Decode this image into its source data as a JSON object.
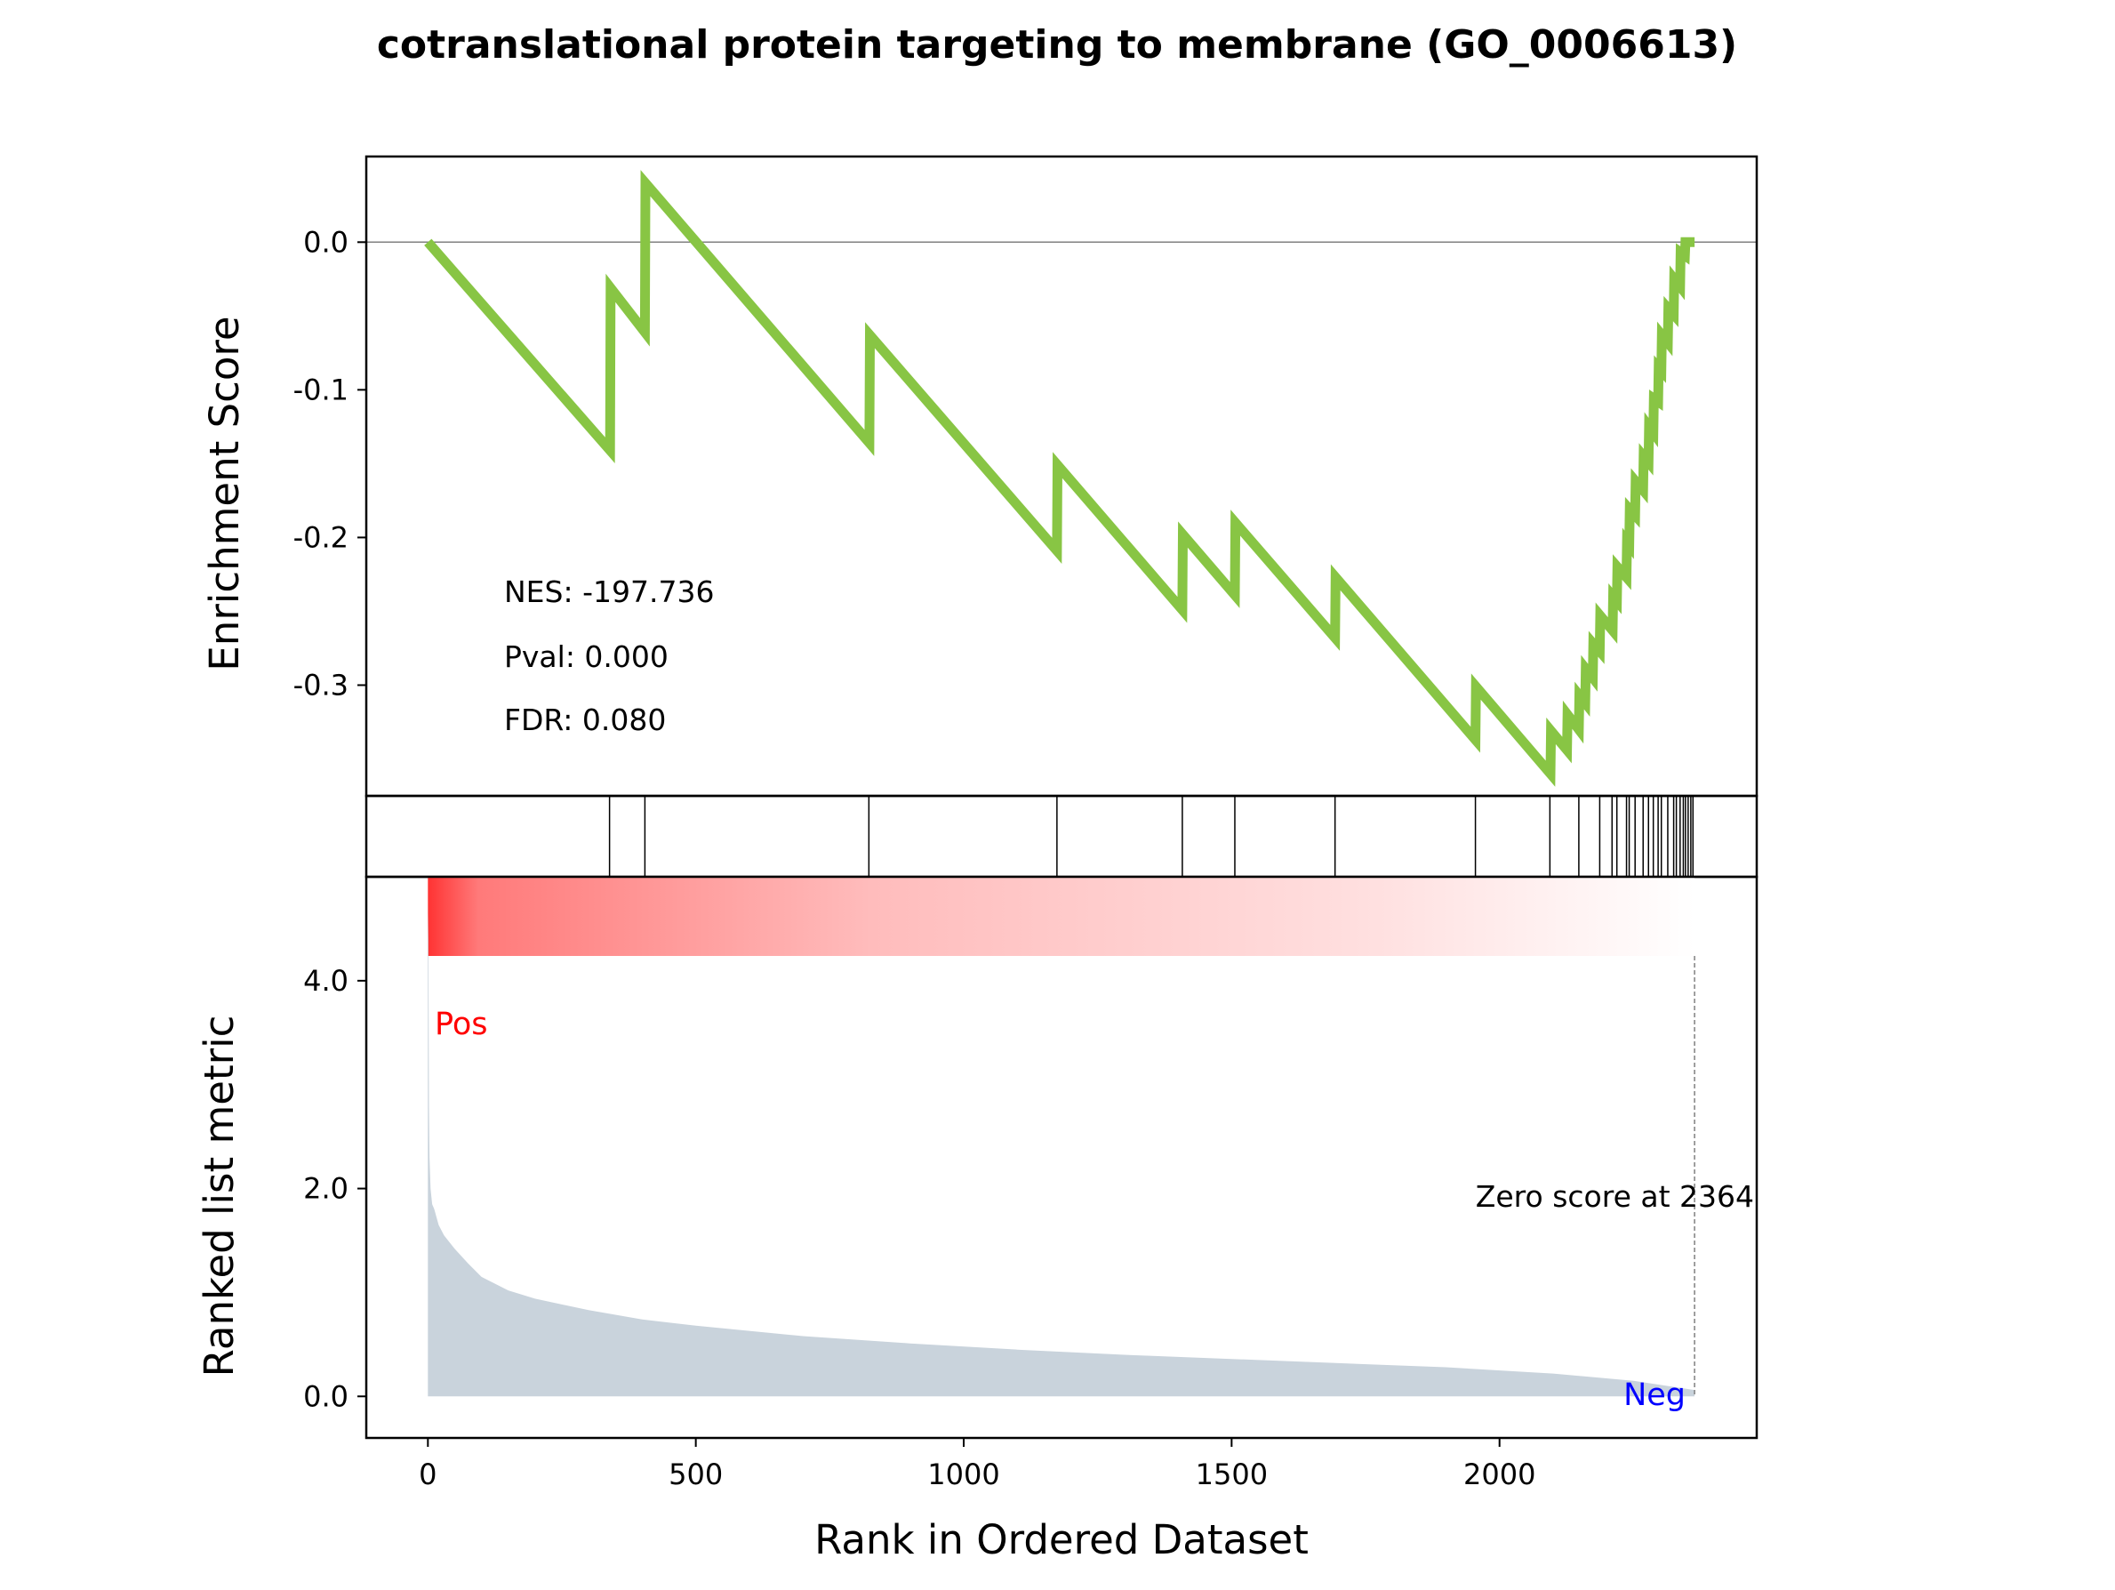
{
  "colors": {
    "enrichment_line": "#88c544",
    "hit_line": "#000000",
    "metric_fill": "#c9d3dc",
    "gradient_start": "#ff3333",
    "gradient_end": "#ffffff",
    "pos_label": "#ff0000",
    "neg_label": "#0000ff",
    "zero_line": "#808080",
    "zero_score_line": "#808080"
  },
  "chart_data": [
    {
      "type": "line",
      "panel": "enrichment",
      "title": "cotranslational protein targeting to membrane (GO_0006613)",
      "ylabel": "Enrichment Score",
      "xlabel": "",
      "xlim": [
        -115,
        2480
      ],
      "ylim": [
        -0.375,
        0.058
      ],
      "yticks": [
        0.0,
        -0.1,
        -0.2,
        -0.3
      ],
      "ytick_labels": [
        "0.0",
        "-0.1",
        "-0.2",
        "-0.3"
      ],
      "zero_line": true,
      "annotations": {
        "nes": "NES: -197.736",
        "pval": "Pval: 0.000",
        "fdr": "FDR: 0.080"
      },
      "series": [
        {
          "x": [
            0,
            340,
            341,
            405,
            406,
            824,
            825,
            1174,
            1175,
            1408,
            1409,
            1506,
            1507,
            1693,
            1694,
            1955,
            1956,
            2095,
            2096,
            2126,
            2127,
            2148,
            2149,
            2160,
            2161,
            2174,
            2175,
            2187,
            2188,
            2211,
            2212,
            2219,
            2220,
            2237,
            2238,
            2242,
            2243,
            2253,
            2254,
            2268,
            2269,
            2278,
            2279,
            2287,
            2288,
            2296,
            2297,
            2302,
            2303,
            2314,
            2315,
            2325,
            2326,
            2337,
            2338,
            2346,
            2347,
            2352,
            2353,
            2360,
            2361,
            2364
          ],
          "y": [
            0.0,
            -0.141,
            -0.031,
            -0.061,
            0.04,
            -0.136,
            -0.063,
            -0.209,
            -0.151,
            -0.249,
            -0.198,
            -0.239,
            -0.19,
            -0.268,
            -0.227,
            -0.337,
            -0.301,
            -0.36,
            -0.331,
            -0.344,
            -0.32,
            -0.33,
            -0.307,
            -0.312,
            -0.289,
            -0.295,
            -0.272,
            -0.277,
            -0.253,
            -0.263,
            -0.24,
            -0.243,
            -0.22,
            -0.227,
            -0.203,
            -0.205,
            -0.181,
            -0.185,
            -0.162,
            -0.168,
            -0.145,
            -0.149,
            -0.125,
            -0.129,
            -0.106,
            -0.108,
            -0.085,
            -0.087,
            -0.063,
            -0.068,
            -0.045,
            -0.049,
            -0.025,
            -0.03,
            -0.007,
            -0.009,
            0.0,
            0.0,
            0.0,
            0.0,
            0.0,
            0.0
          ]
        }
      ]
    },
    {
      "type": "hits",
      "panel": "gene_hits",
      "hit_positions": [
        339,
        405,
        823,
        1174,
        1408,
        1506,
        1693,
        1955,
        2094,
        2148,
        2187,
        2210,
        2219,
        2237,
        2242,
        2253,
        2268,
        2278,
        2287,
        2296,
        2302,
        2314,
        2325,
        2330,
        2337,
        2343,
        2347,
        2352,
        2357,
        2361
      ]
    },
    {
      "type": "area",
      "panel": "ranked_metric",
      "ylabel": "Ranked list metric",
      "xlabel": "Rank in Ordered Dataset",
      "xlim": [
        -115,
        2480
      ],
      "ylim": [
        -0.4,
        5.0
      ],
      "xticks": [
        0,
        500,
        1000,
        1500,
        2000
      ],
      "xtick_labels": [
        "0",
        "500",
        "1000",
        "1500",
        "2000"
      ],
      "yticks": [
        0.0,
        2.0,
        4.0
      ],
      "ytick_labels": [
        "0.0",
        "2.0",
        "4.0"
      ],
      "pos_label": "Pos",
      "neg_label": "Neg",
      "zero_score_text": "Zero score at 2364",
      "zero_score_rank": 2364,
      "heatmap_top": 5.0,
      "heatmap_bottom": 5.0,
      "series": [
        {
          "x": [
            0,
            1,
            2,
            3,
            5,
            8,
            12,
            20,
            30,
            50,
            75,
            100,
            150,
            200,
            300,
            400,
            500,
            700,
            900,
            1100,
            1300,
            1500,
            1700,
            1900,
            2100,
            2250,
            2364
          ],
          "y": [
            4.78,
            4.4,
            2.8,
            2.3,
            2.0,
            1.85,
            1.8,
            1.65,
            1.55,
            1.42,
            1.28,
            1.15,
            1.02,
            0.94,
            0.83,
            0.74,
            0.68,
            0.58,
            0.51,
            0.45,
            0.4,
            0.36,
            0.32,
            0.28,
            0.22,
            0.15,
            0.06
          ]
        }
      ]
    }
  ]
}
